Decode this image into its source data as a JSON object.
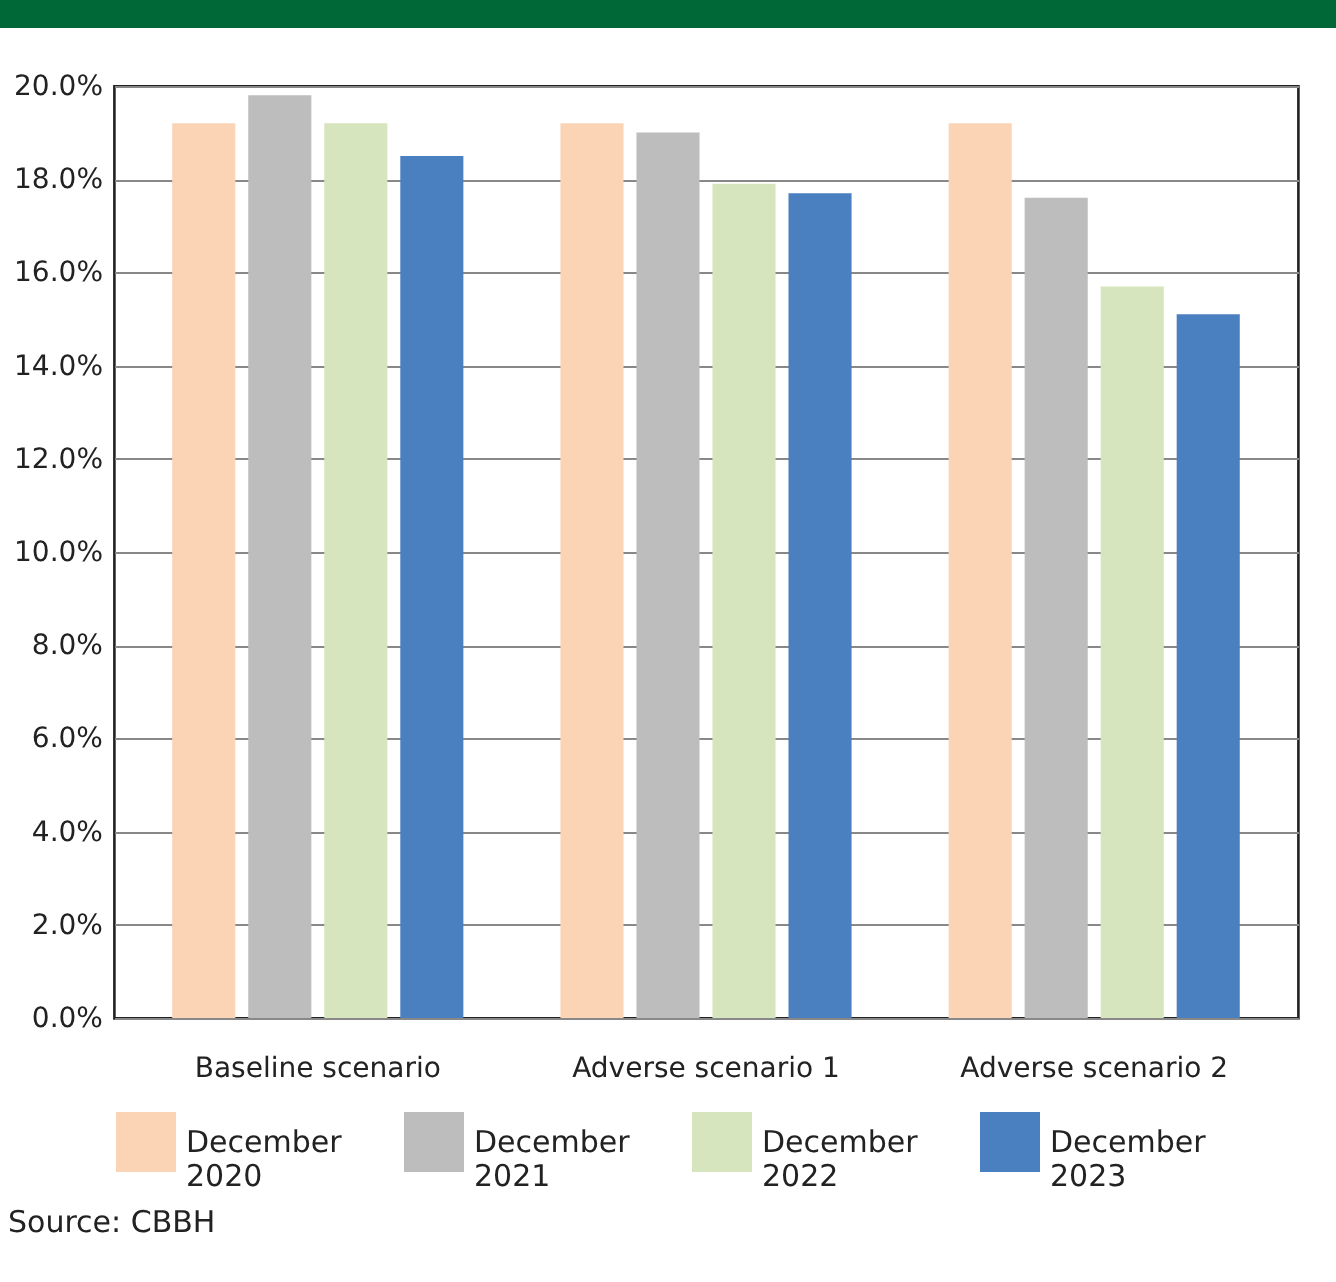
{
  "chart_data": {
    "type": "bar",
    "categories": [
      "Baseline scenario",
      "Adverse scenario 1",
      "Adverse scenario 2"
    ],
    "series": [
      {
        "name": "December 2020",
        "color": "#fad4b4",
        "values": [
          19.2,
          19.2,
          19.2
        ]
      },
      {
        "name": "December 2021",
        "color": "#bdbdbd",
        "values": [
          19.8,
          19.0,
          17.6
        ]
      },
      {
        "name": "December 2022",
        "color": "#d6e5bd",
        "values": [
          19.2,
          17.9,
          15.7
        ]
      },
      {
        "name": "December 2023",
        "color": "#4a80c0",
        "values": [
          18.5,
          17.7,
          15.1
        ]
      }
    ],
    "ylim": [
      0,
      20
    ],
    "yticks": [
      {
        "value": 0,
        "label": "0.0%"
      },
      {
        "value": 2,
        "label": "2.0%"
      },
      {
        "value": 4,
        "label": "4.0%"
      },
      {
        "value": 6,
        "label": "6.0%"
      },
      {
        "value": 8,
        "label": "8.0%"
      },
      {
        "value": 10,
        "label": "10.0%"
      },
      {
        "value": 12,
        "label": "12.0%"
      },
      {
        "value": 14,
        "label": "14.0%"
      },
      {
        "value": 16,
        "label": "16.0%"
      },
      {
        "value": 18,
        "label": "18.0%"
      },
      {
        "value": 20,
        "label": "20.0%"
      }
    ],
    "grid": "y",
    "legend": "bottom",
    "annotations": [
      "Source: CBBH"
    ]
  }
}
